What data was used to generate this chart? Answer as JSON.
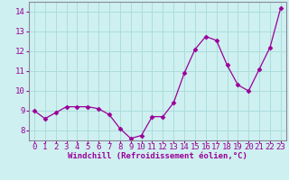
{
  "x": [
    0,
    1,
    2,
    3,
    4,
    5,
    6,
    7,
    8,
    9,
    10,
    11,
    12,
    13,
    14,
    15,
    16,
    17,
    18,
    19,
    20,
    21,
    22,
    23
  ],
  "y": [
    9.0,
    8.6,
    8.9,
    9.2,
    9.2,
    9.2,
    9.1,
    8.8,
    8.1,
    7.6,
    7.75,
    8.7,
    8.7,
    9.4,
    10.9,
    12.1,
    12.75,
    12.55,
    11.3,
    10.3,
    10.0,
    11.1,
    12.2,
    14.2
  ],
  "line_color": "#990099",
  "marker": "D",
  "marker_size": 2.5,
  "bg_color": "#cff0f0",
  "grid_color": "#aadddd",
  "xlabel": "Windchill (Refroidissement éolien,°C)",
  "ylim": [
    7.5,
    14.5
  ],
  "yticks": [
    8,
    9,
    10,
    11,
    12,
    13,
    14
  ],
  "xticks": [
    0,
    1,
    2,
    3,
    4,
    5,
    6,
    7,
    8,
    9,
    10,
    11,
    12,
    13,
    14,
    15,
    16,
    17,
    18,
    19,
    20,
    21,
    22,
    23
  ],
  "xlabel_fontsize": 6.5,
  "tick_fontsize": 6.5,
  "spine_color": "#888899"
}
